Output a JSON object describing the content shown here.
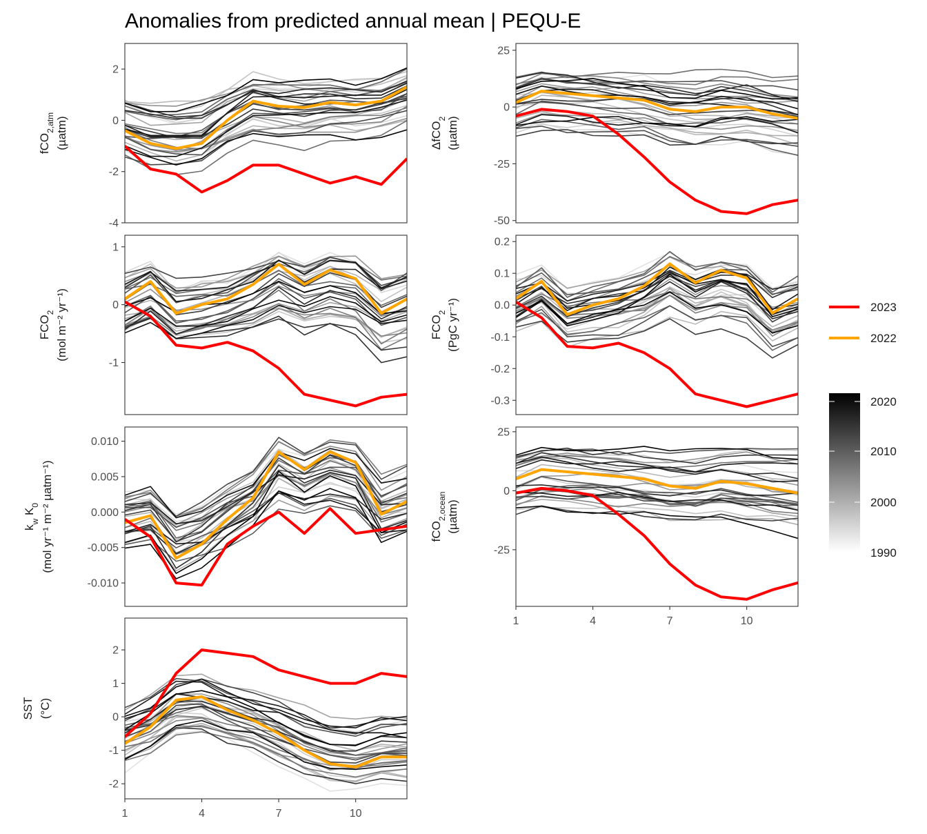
{
  "title": "Anomalies from predicted annual mean | PEQU-E",
  "colors": {
    "highlight_2023": "#ff0000",
    "highlight_2022": "#ffa500",
    "gradient_low": "#f2f2f2",
    "gradient_high": "#000000",
    "panel_border": "#333333"
  },
  "x_ticks": [
    "1",
    "4",
    "7",
    "10"
  ],
  "legend": {
    "lines": [
      {
        "label": "2023",
        "color": "#ff0000"
      },
      {
        "label": "2022",
        "color": "#ffa500"
      }
    ],
    "colorbar_labels": [
      "2020",
      "2010",
      "2000",
      "1990"
    ]
  },
  "chart_data": [
    {
      "type": "line",
      "ylabel_main": "fCO",
      "ylabel_sub": "2,atm",
      "ylabel_unit": "(µatm)",
      "x": [
        1,
        2,
        3,
        4,
        5,
        6,
        7,
        8,
        9,
        10,
        11,
        12
      ],
      "ylim": [
        -4,
        3
      ],
      "yticks": [
        2,
        0,
        -2,
        -4
      ],
      "ytick_labels": [
        "2",
        "0",
        "-2",
        "-4"
      ],
      "series": [
        {
          "name": "2023",
          "values": [
            -1.0,
            -1.9,
            -2.1,
            -2.8,
            -2.35,
            -1.75,
            -1.75,
            -2.1,
            -2.45,
            -2.2,
            -2.5,
            -1.5
          ]
        },
        {
          "name": "2022",
          "values": [
            -0.4,
            -0.9,
            -1.1,
            -0.9,
            0.0,
            0.75,
            0.55,
            0.5,
            0.7,
            0.6,
            0.75,
            1.3
          ]
        }
      ]
    },
    {
      "type": "line",
      "ylabel_main": "ΔfCO",
      "ylabel_sub": "2",
      "ylabel_unit": "(µatm)",
      "x": [
        1,
        2,
        3,
        4,
        5,
        6,
        7,
        8,
        9,
        10,
        11,
        12
      ],
      "ylim": [
        -51,
        28
      ],
      "yticks": [
        25,
        0,
        -25,
        -50
      ],
      "ytick_labels": [
        "25",
        "0",
        "-25",
        "-50"
      ],
      "series": [
        {
          "name": "2023",
          "values": [
            -4,
            -1,
            -2,
            -4,
            -12,
            -22,
            -33,
            -41,
            -46,
            -47,
            -43,
            -41
          ]
        },
        {
          "name": "2022",
          "values": [
            2,
            7,
            6,
            5,
            4,
            3,
            -1,
            -2,
            0,
            0,
            -3,
            -5
          ]
        }
      ]
    },
    {
      "type": "line",
      "ylabel_main": "FCO",
      "ylabel_sub": "2",
      "ylabel_unit": "(mol m⁻² yr⁻¹)",
      "x": [
        1,
        2,
        3,
        4,
        5,
        6,
        7,
        8,
        9,
        10,
        11,
        12
      ],
      "ylim": [
        -1.9,
        1.2
      ],
      "yticks": [
        1,
        0,
        -1
      ],
      "ytick_labels": [
        "1",
        "0",
        "-1"
      ],
      "series": [
        {
          "name": "2023",
          "values": [
            0.05,
            -0.2,
            -0.7,
            -0.75,
            -0.65,
            -0.8,
            -1.1,
            -1.55,
            -1.65,
            -1.75,
            -1.6,
            -1.55
          ]
        },
        {
          "name": "2022",
          "values": [
            0.1,
            0.4,
            -0.15,
            0.0,
            0.1,
            0.35,
            0.7,
            0.35,
            0.6,
            0.45,
            -0.15,
            0.1
          ]
        }
      ]
    },
    {
      "type": "line",
      "ylabel_main": "FCO",
      "ylabel_sub": "2",
      "ylabel_unit": "(PgC yr⁻¹)",
      "x": [
        1,
        2,
        3,
        4,
        5,
        6,
        7,
        8,
        9,
        10,
        11,
        12
      ],
      "ylim": [
        -0.345,
        0.22
      ],
      "yticks": [
        0.2,
        0.1,
        0.0,
        -0.1,
        -0.2,
        -0.3
      ],
      "ytick_labels": [
        "0.2",
        "0.1",
        "0.0",
        "-0.1",
        "-0.2",
        "-0.3"
      ],
      "series": [
        {
          "name": "2023",
          "values": [
            0.01,
            -0.04,
            -0.13,
            -0.135,
            -0.12,
            -0.15,
            -0.2,
            -0.28,
            -0.3,
            -0.32,
            -0.3,
            -0.28
          ]
        },
        {
          "name": "2022",
          "values": [
            0.02,
            0.075,
            -0.03,
            0.0,
            0.02,
            0.06,
            0.13,
            0.07,
            0.11,
            0.085,
            -0.025,
            0.02
          ]
        }
      ]
    },
    {
      "type": "line",
      "ylabel_main": "k",
      "ylabel_sub": "w",
      "ylabel_main2": " K",
      "ylabel_sub2": "0",
      "ylabel_unit": "(mol yr⁻¹ m⁻² µatm⁻¹)",
      "x": [
        1,
        2,
        3,
        4,
        5,
        6,
        7,
        8,
        9,
        10,
        11,
        12
      ],
      "ylim": [
        -0.0133,
        0.012
      ],
      "yticks": [
        0.01,
        0.005,
        0.0,
        -0.005,
        -0.01
      ],
      "ytick_labels": [
        "0.010",
        "0.005",
        "0.000",
        "-0.005",
        "-0.010"
      ],
      "series": [
        {
          "name": "2023",
          "values": [
            -0.001,
            -0.0035,
            -0.01,
            -0.0103,
            -0.0045,
            -0.002,
            0.0,
            -0.003,
            0.0005,
            -0.003,
            -0.0025,
            -0.002
          ]
        },
        {
          "name": "2022",
          "values": [
            -0.0015,
            -0.0005,
            -0.0065,
            -0.0045,
            -0.001,
            0.002,
            0.0085,
            0.006,
            0.0085,
            0.007,
            -0.0003,
            0.0015
          ]
        }
      ]
    },
    {
      "type": "line",
      "ylabel_main": "fCO",
      "ylabel_sub": "2,ocean",
      "ylabel_unit": "(µatm)",
      "x": [
        1,
        2,
        3,
        4,
        5,
        6,
        7,
        8,
        9,
        10,
        11,
        12
      ],
      "ylim": [
        -49,
        27
      ],
      "yticks": [
        25,
        0,
        -25
      ],
      "ytick_labels": [
        "25",
        "0",
        "-25"
      ],
      "series": [
        {
          "name": "2023",
          "values": [
            -1,
            1,
            0,
            -2,
            -10,
            -19,
            -31,
            -40,
            -45,
            -46,
            -42,
            -39
          ]
        },
        {
          "name": "2022",
          "values": [
            5,
            9,
            8,
            7,
            6,
            5,
            2,
            1,
            4,
            3,
            1,
            -1
          ]
        }
      ]
    },
    {
      "type": "line",
      "ylabel_main": "SST",
      "ylabel_sub": "",
      "ylabel_unit": "(°C)",
      "x": [
        1,
        2,
        3,
        4,
        5,
        6,
        7,
        8,
        9,
        10,
        11,
        12
      ],
      "ylim": [
        -2.45,
        2.95
      ],
      "yticks": [
        2,
        1,
        0,
        -1,
        -2
      ],
      "ytick_labels": [
        "2",
        "1",
        "0",
        "-1",
        "-2"
      ],
      "series": [
        {
          "name": "2023",
          "values": [
            -0.6,
            0.1,
            1.3,
            2.0,
            1.9,
            1.8,
            1.4,
            1.2,
            1.0,
            1.0,
            1.3,
            1.2
          ]
        },
        {
          "name": "2022",
          "values": [
            -0.8,
            -0.3,
            0.5,
            0.6,
            0.2,
            -0.1,
            -0.5,
            -1.0,
            -1.4,
            -1.5,
            -1.2,
            -1.2
          ]
        }
      ]
    }
  ]
}
